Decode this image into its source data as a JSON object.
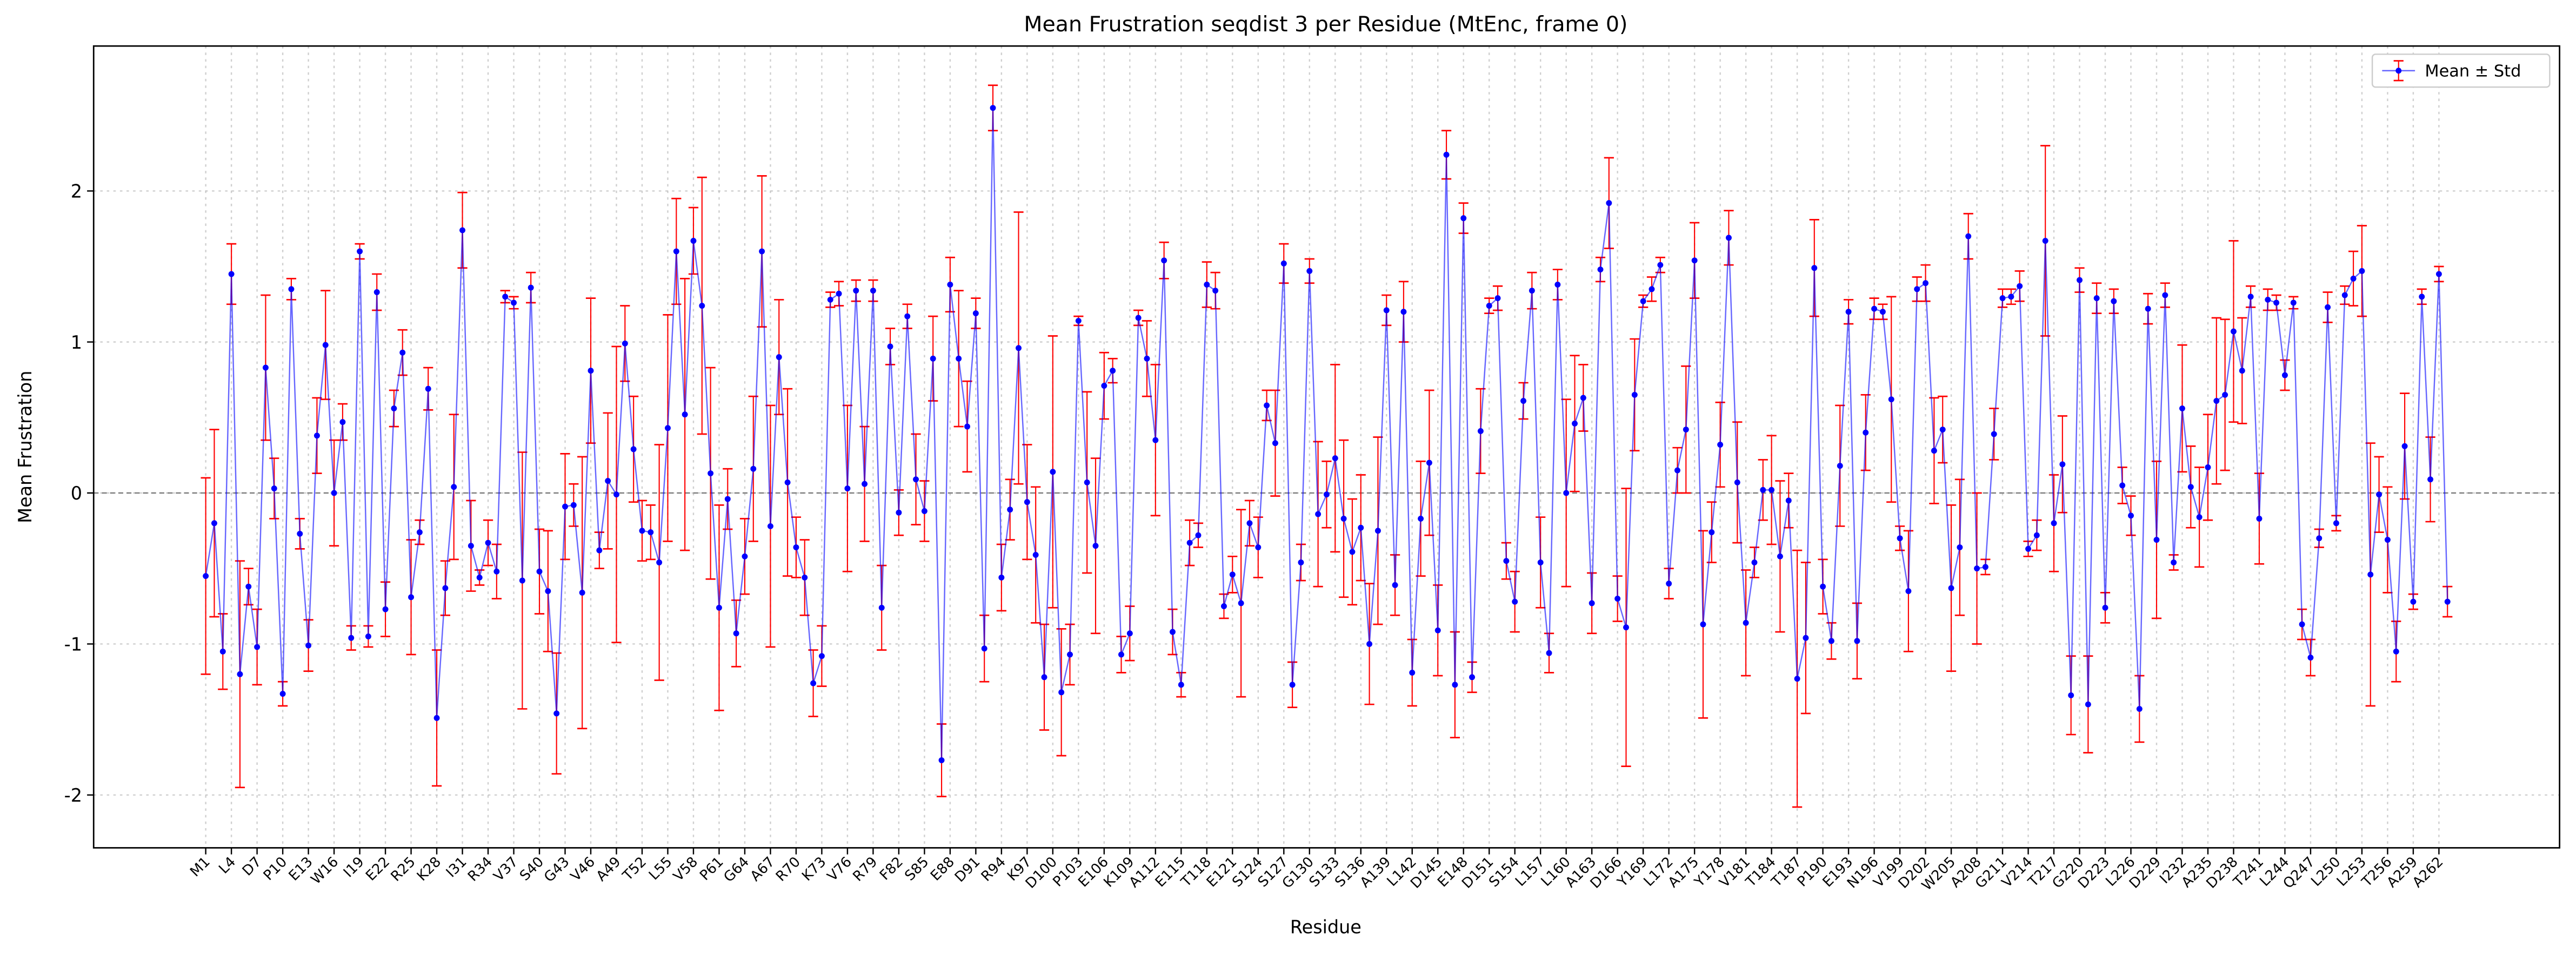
{
  "chart_data": {
    "type": "errorbar",
    "title": "Mean Frustration seqdist 3 per Residue (MtEnc, frame 0)",
    "x_label": "Residue",
    "y_label": "Mean Frustration",
    "categories": [
      "M1",
      null,
      null,
      "L4",
      null,
      null,
      "D7",
      null,
      null,
      "P10",
      null,
      null,
      "E13",
      null,
      null,
      "W16",
      null,
      null,
      "I19",
      null,
      null,
      "E22",
      null,
      null,
      "R25",
      null,
      null,
      "K28",
      null,
      null,
      "I31",
      null,
      null,
      "R34",
      null,
      null,
      "V37",
      null,
      null,
      "S40",
      null,
      null,
      "G43",
      null,
      null,
      "V46",
      null,
      null,
      "A49",
      null,
      null,
      "T52",
      null,
      null,
      "L55",
      null,
      null,
      "V58",
      null,
      null,
      "P61",
      null,
      null,
      "G64",
      null,
      null,
      "A67",
      null,
      null,
      "R70",
      null,
      null,
      "K73",
      null,
      null,
      "V76",
      null,
      null,
      "R79",
      null,
      null,
      "F82",
      null,
      null,
      "S85",
      null,
      null,
      "E88",
      null,
      null,
      "D91",
      null,
      null,
      "R94",
      null,
      null,
      "K97",
      null,
      null,
      "D100",
      null,
      null,
      "P103",
      null,
      null,
      "E106",
      null,
      null,
      "K109",
      null,
      null,
      "A112",
      null,
      null,
      "E115",
      null,
      null,
      "T118",
      null,
      null,
      "E121",
      null,
      null,
      "S124",
      null,
      null,
      "S127",
      null,
      null,
      "G130",
      null,
      null,
      "S133",
      null,
      null,
      "S136",
      null,
      null,
      "A139",
      null,
      null,
      "L142",
      null,
      null,
      "D145",
      null,
      null,
      "E148",
      null,
      null,
      "D151",
      null,
      null,
      "S154",
      null,
      null,
      "L157",
      null,
      null,
      "L160",
      null,
      null,
      "A163",
      null,
      null,
      "D166",
      null,
      null,
      "Y169",
      null,
      null,
      "L172",
      null,
      null,
      "A175",
      null,
      null,
      "Y178",
      null,
      null,
      "V181",
      null,
      null,
      "T184",
      null,
      null,
      "T187",
      null,
      null,
      "P190",
      null,
      null,
      "E193",
      null,
      null,
      "N196",
      null,
      null,
      "V199",
      null,
      null,
      "D202",
      null,
      null,
      "W205",
      null,
      null,
      "A208",
      null,
      null,
      "G211",
      null,
      null,
      "V214",
      null,
      null,
      "T217",
      null,
      null,
      "G220",
      null,
      null,
      "D223",
      null,
      null,
      "L226",
      null,
      null,
      "D229",
      null,
      null,
      "I232",
      null,
      null,
      "A235",
      null,
      null,
      "D238",
      null,
      null,
      "T241",
      null,
      null,
      "L244",
      null,
      null,
      "Q247",
      null,
      null,
      "L250",
      null,
      null,
      "L253",
      null,
      null,
      "T256",
      null,
      null,
      "A259",
      null,
      null,
      "A262",
      null
    ],
    "series": [
      {
        "name": "Mean ± Std",
        "color": "#0000ff",
        "error_color": "#ff0000",
        "values": [
          -0.55,
          -0.2,
          -1.05,
          1.45,
          -1.2,
          -0.62,
          -1.02,
          0.83,
          0.03,
          -1.33,
          1.35,
          -0.27,
          -1.01,
          0.38,
          0.98,
          0.0,
          0.47,
          -0.96,
          1.6,
          -0.95,
          1.33,
          -0.77,
          0.56,
          0.93,
          -0.69,
          -0.26,
          0.69,
          -1.49,
          -0.63,
          0.04,
          1.74,
          -0.35,
          -0.56,
          -0.33,
          -0.52,
          1.3,
          1.26,
          -0.58,
          1.36,
          -0.52,
          -0.65,
          -1.46,
          -0.09,
          -0.08,
          -0.66,
          0.81,
          -0.38,
          0.08,
          -0.01,
          0.99,
          0.29,
          -0.25,
          -0.26,
          -0.46,
          0.43,
          1.6,
          0.52,
          1.67,
          1.24,
          0.13,
          -0.76,
          -0.04,
          -0.93,
          -0.42,
          0.16,
          1.6,
          -0.22,
          0.9,
          0.07,
          -0.36,
          -0.56,
          -1.26,
          -1.08,
          1.28,
          1.32,
          0.03,
          1.34,
          0.06,
          1.34,
          -0.76,
          0.97,
          -0.13,
          1.17,
          0.09,
          -0.12,
          0.89,
          -1.77,
          1.38,
          0.89,
          0.44,
          1.19,
          -1.03,
          2.55,
          -0.56,
          -0.11,
          0.96,
          -0.06,
          -0.41,
          -1.22,
          0.14,
          -1.32,
          -1.07,
          1.14,
          0.07,
          -0.35,
          0.71,
          0.81,
          -1.07,
          -0.93,
          1.16,
          0.89,
          0.35,
          1.54,
          -0.92,
          -1.27,
          -0.33,
          -0.28,
          1.38,
          1.34,
          -0.75,
          -0.54,
          -0.73,
          -0.2,
          -0.36,
          0.58,
          0.33,
          1.52,
          -1.27,
          -0.46,
          1.47,
          -0.14,
          -0.01,
          0.23,
          -0.17,
          -0.39,
          -0.23,
          -1.0,
          -0.25,
          1.21,
          -0.61,
          1.2,
          -1.19,
          -0.17,
          0.2,
          -0.91,
          2.24,
          -1.27,
          1.82,
          -1.22,
          0.41,
          1.24,
          1.29,
          -0.45,
          -0.72,
          0.61,
          1.34,
          -0.46,
          -1.06,
          1.38,
          0.0,
          0.46,
          0.63,
          -0.73,
          1.48,
          1.92,
          -0.7,
          -0.89,
          0.65,
          1.27,
          1.35,
          1.51,
          -0.6,
          0.15,
          0.42,
          1.54,
          -0.87,
          -0.26,
          0.32,
          1.69,
          0.07,
          -0.86,
          -0.46,
          0.02,
          0.02,
          -0.42,
          -0.05,
          -1.23,
          -0.96,
          1.49,
          -0.62,
          -0.98,
          0.18,
          1.2,
          -0.98,
          0.4,
          1.22,
          1.2,
          0.62,
          -0.3,
          -0.65,
          1.35,
          1.39,
          0.28,
          0.42,
          -0.63,
          -0.36,
          1.7,
          -0.5,
          -0.49,
          0.39,
          1.29,
          1.3,
          1.37,
          -0.37,
          -0.28,
          1.67,
          -0.2,
          0.19,
          -1.34,
          1.41,
          -1.4,
          1.29,
          -0.76,
          1.27,
          0.05,
          -0.15,
          -1.43,
          1.22,
          -0.31,
          1.31,
          -0.46,
          0.56,
          0.04,
          -0.16,
          0.17,
          0.61,
          0.65,
          1.07,
          0.81,
          1.3,
          -0.17,
          1.28,
          1.26,
          0.78,
          1.26,
          -0.87,
          -1.09,
          -0.3,
          1.23,
          -0.2,
          1.31,
          1.42,
          1.47,
          -0.54,
          -0.01,
          -0.31,
          -1.05,
          0.31,
          -0.72,
          1.3,
          0.09,
          1.45,
          -0.72
        ],
        "errors": [
          0.65,
          0.62,
          0.25,
          0.2,
          0.75,
          0.12,
          0.25,
          0.48,
          0.2,
          0.08,
          0.07,
          0.1,
          0.17,
          0.25,
          0.36,
          0.35,
          0.12,
          0.08,
          0.05,
          0.07,
          0.12,
          0.18,
          0.12,
          0.15,
          0.38,
          0.08,
          0.14,
          0.45,
          0.18,
          0.48,
          0.25,
          0.3,
          0.05,
          0.15,
          0.18,
          0.04,
          0.04,
          0.85,
          0.1,
          0.28,
          0.4,
          0.4,
          0.35,
          0.14,
          0.9,
          0.48,
          0.12,
          0.45,
          0.98,
          0.25,
          0.35,
          0.2,
          0.18,
          0.78,
          0.75,
          0.35,
          0.9,
          0.22,
          0.85,
          0.7,
          0.68,
          0.2,
          0.22,
          0.25,
          0.48,
          0.5,
          0.8,
          0.38,
          0.62,
          0.2,
          0.25,
          0.22,
          0.2,
          0.05,
          0.08,
          0.55,
          0.07,
          0.38,
          0.07,
          0.28,
          0.12,
          0.15,
          0.08,
          0.3,
          0.2,
          0.28,
          0.24,
          0.18,
          0.45,
          0.3,
          0.1,
          0.22,
          0.15,
          0.22,
          0.2,
          0.9,
          0.38,
          0.45,
          0.35,
          0.9,
          0.42,
          0.2,
          0.03,
          0.6,
          0.58,
          0.22,
          0.08,
          0.12,
          0.18,
          0.05,
          0.25,
          0.5,
          0.12,
          0.15,
          0.08,
          0.15,
          0.08,
          0.15,
          0.12,
          0.08,
          0.12,
          0.62,
          0.15,
          0.2,
          0.1,
          0.35,
          0.13,
          0.15,
          0.12,
          0.08,
          0.48,
          0.22,
          0.62,
          0.52,
          0.35,
          0.35,
          0.4,
          0.62,
          0.1,
          0.2,
          0.2,
          0.22,
          0.38,
          0.48,
          0.3,
          0.16,
          0.35,
          0.1,
          0.1,
          0.28,
          0.05,
          0.08,
          0.12,
          0.2,
          0.12,
          0.12,
          0.3,
          0.13,
          0.1,
          0.62,
          0.45,
          0.22,
          0.2,
          0.08,
          0.3,
          0.15,
          0.92,
          0.37,
          0.04,
          0.08,
          0.05,
          0.1,
          0.15,
          0.42,
          0.25,
          0.62,
          0.2,
          0.28,
          0.18,
          0.4,
          0.35,
          0.1,
          0.2,
          0.36,
          0.5,
          0.18,
          0.85,
          0.5,
          0.32,
          0.18,
          0.12,
          0.4,
          0.08,
          0.25,
          0.25,
          0.07,
          0.05,
          0.68,
          0.08,
          0.4,
          0.08,
          0.12,
          0.35,
          0.22,
          0.55,
          0.45,
          0.15,
          0.5,
          0.05,
          0.17,
          0.06,
          0.05,
          0.1,
          0.05,
          0.1,
          0.63,
          0.32,
          0.32,
          0.26,
          0.08,
          0.32,
          0.1,
          0.1,
          0.08,
          0.12,
          0.13,
          0.22,
          0.1,
          0.52,
          0.08,
          0.05,
          0.42,
          0.27,
          0.33,
          0.35,
          0.55,
          0.5,
          0.6,
          0.35,
          0.07,
          0.3,
          0.07,
          0.05,
          0.1,
          0.04,
          0.1,
          0.12,
          0.06,
          0.1,
          0.05,
          0.06,
          0.18,
          0.3,
          0.87,
          0.25,
          0.35,
          0.2,
          0.35,
          0.05,
          0.05,
          0.28,
          0.05,
          0.1
        ]
      }
    ],
    "ylim": [
      -2.35,
      2.96
    ],
    "yticks": [
      -2,
      -1,
      0,
      1,
      2
    ],
    "reference_line": 0,
    "grid": true,
    "legend": "upper right"
  }
}
